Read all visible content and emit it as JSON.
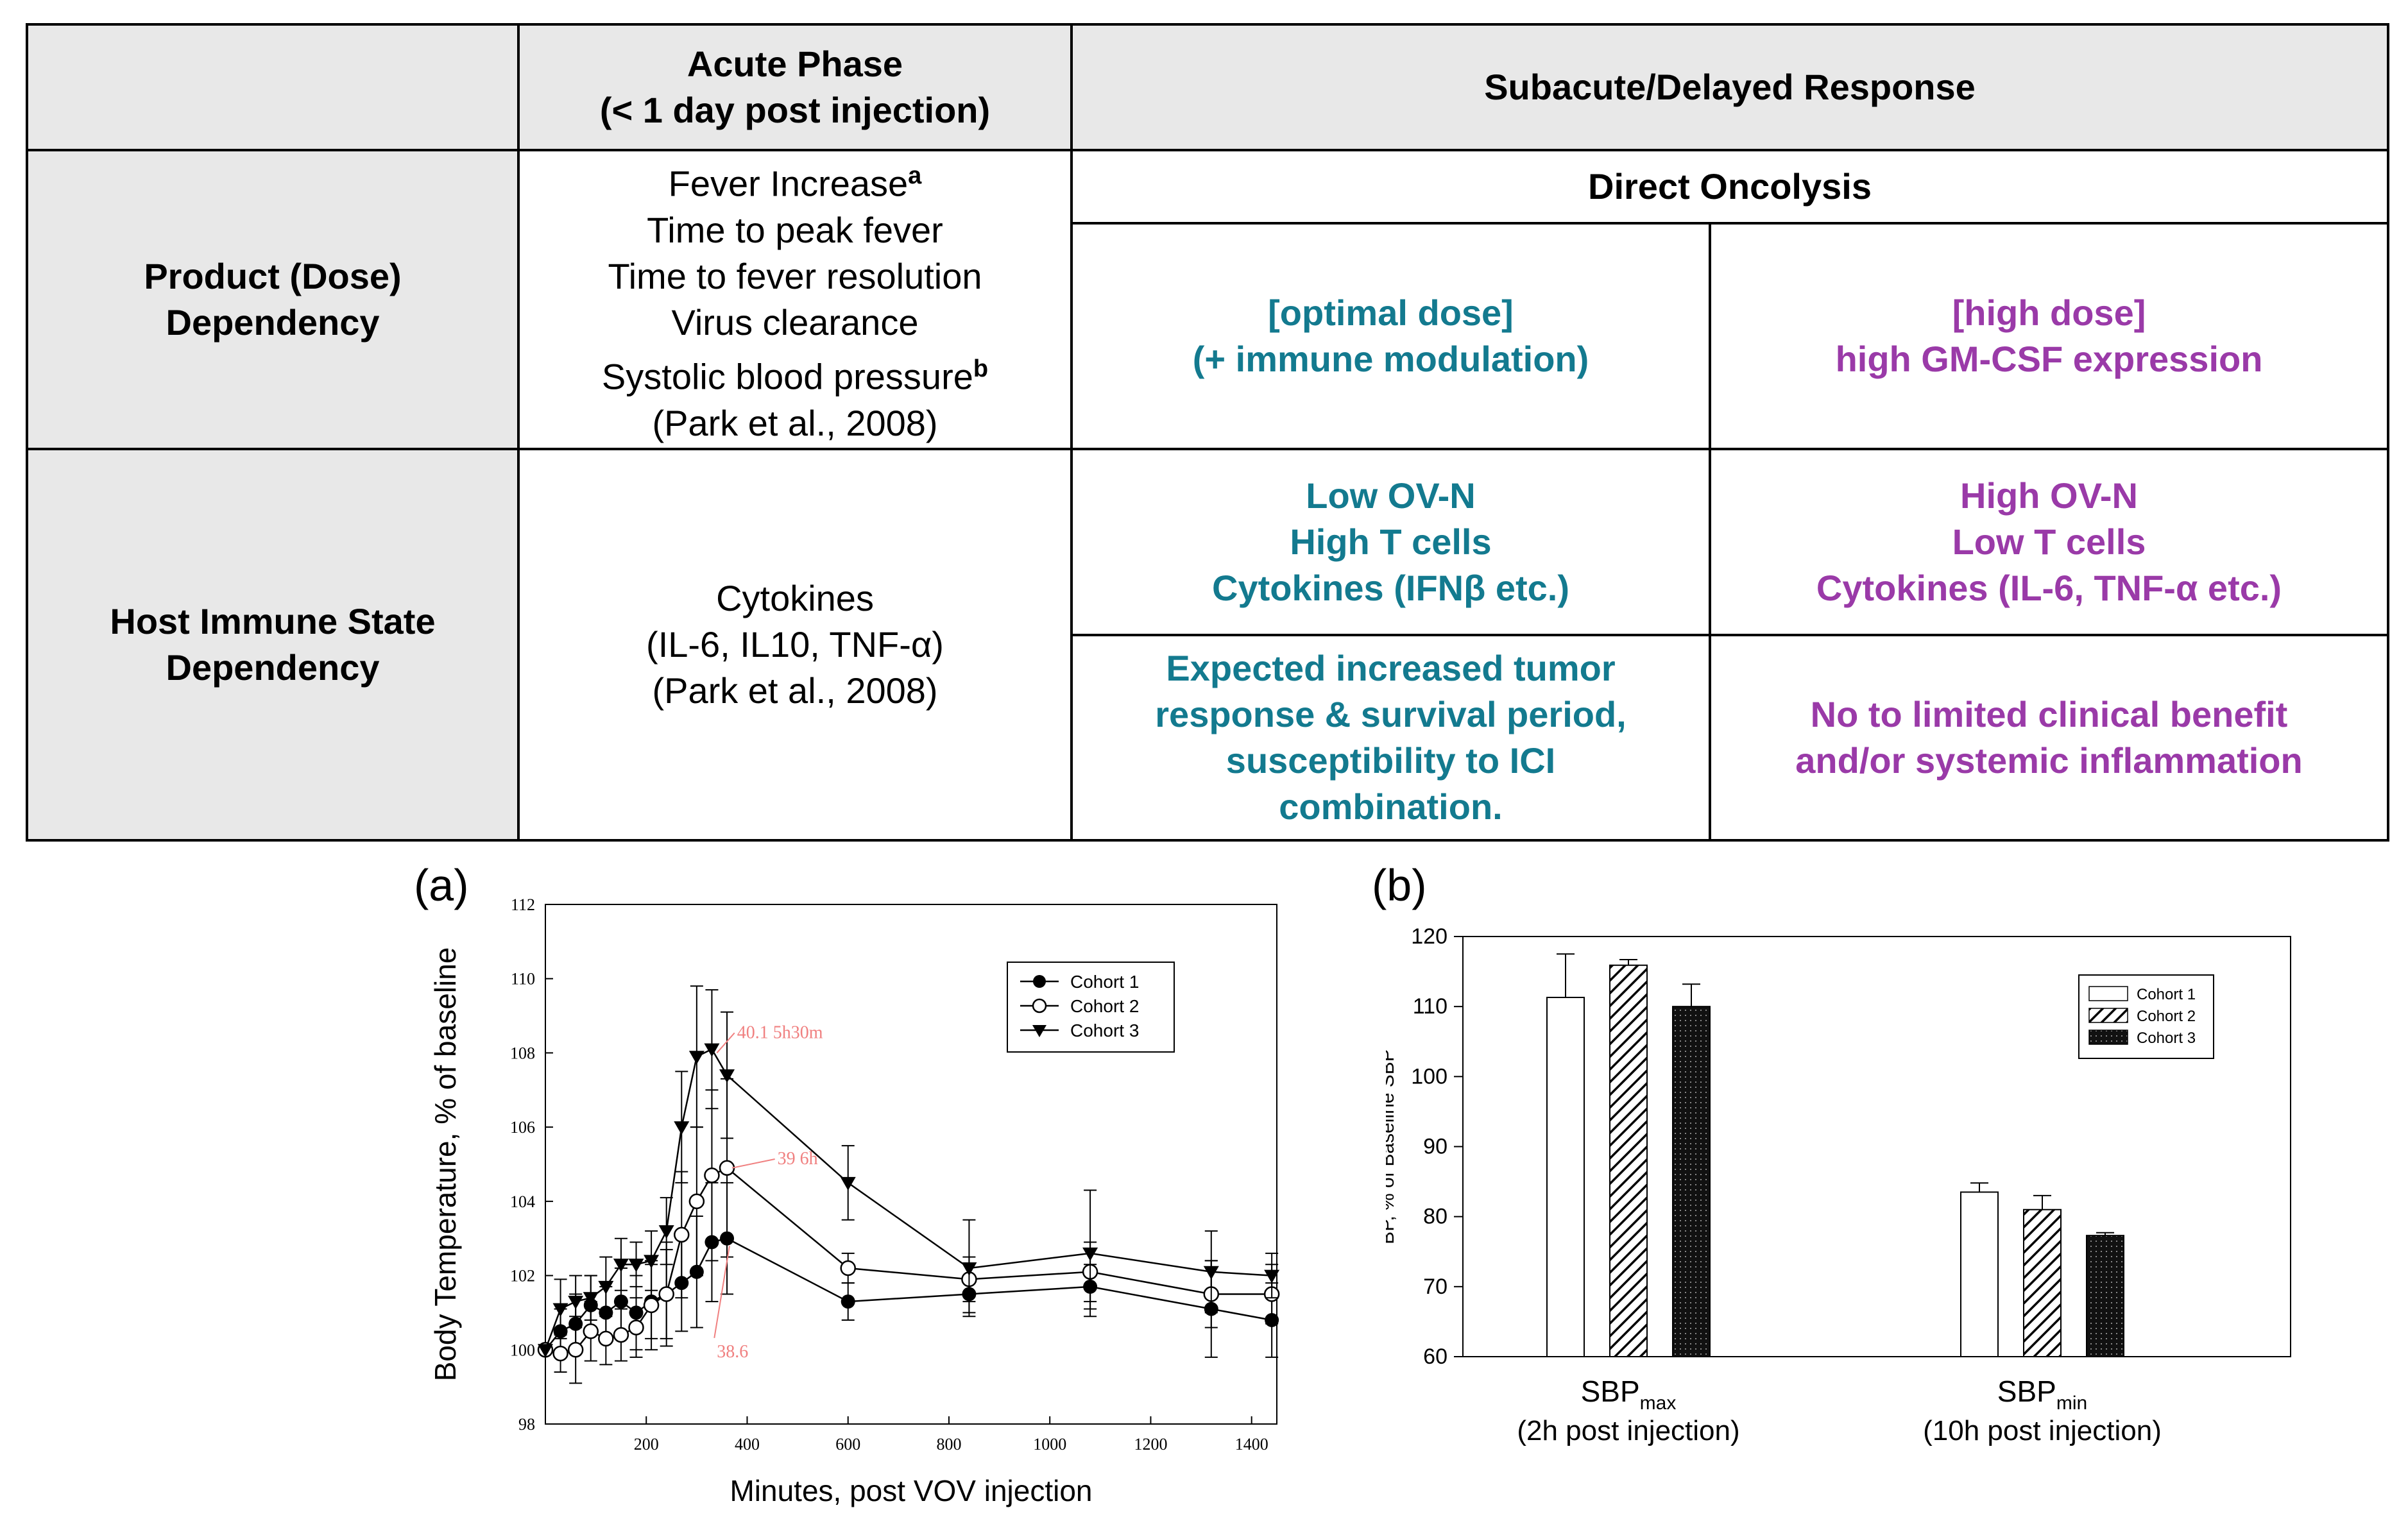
{
  "table": {
    "col_headers": {
      "acute_line1": "Acute Phase",
      "acute_line2": "(< 1 day post injection)",
      "subacute": "Subacute/Delayed Response"
    },
    "rows": {
      "product_line1": "Product (Dose)",
      "product_line2": "Dependency",
      "host_line1": "Host Immune State",
      "host_line2": "Dependency"
    },
    "acute_product": {
      "l1": "Fever Increase",
      "l1_sup": "a",
      "l2": "Time to peak fever",
      "l3": "Time to fever resolution",
      "l4": "Virus clearance",
      "l5": "Systolic blood pressure",
      "l5_sup": "b",
      "l6": "(Park et al., 2008)"
    },
    "acute_host": {
      "l1": "Cytokines",
      "l2": "(IL-6, IL10, TNF-α)",
      "l3": "(Park et al., 2008)"
    },
    "direct_oncolysis": "Direct Oncolysis",
    "optimal_dose": {
      "l1": "[optimal dose]",
      "l2": "(+ immune modulation)"
    },
    "high_dose": {
      "l1": "[high dose]",
      "l2": "high GM-CSF expression"
    },
    "low_ovn": {
      "l1": "Low OV-N",
      "l2": "High T cells",
      "l3": "Cytokines (IFNβ etc.)"
    },
    "high_ovn": {
      "l1": "High OV-N",
      "l2": "Low T cells",
      "l3": "Cytokines (IL-6, TNF-α etc.)"
    },
    "expected": {
      "l1": "Expected increased tumor",
      "l2": "response & survival period,",
      "l3": "susceptibility to ICI",
      "l4": "combination."
    },
    "no_benefit": {
      "l1": "No to limited clinical benefit",
      "l2": "and/or systemic inflammation"
    }
  },
  "colors": {
    "teal": "#137a8f",
    "purple": "#9a3aa8",
    "header_bg": "#e8e8e8",
    "annotation": "#f08080"
  },
  "chart_a_label": "(a)",
  "chart_b_label": "(b)",
  "chart_data": [
    {
      "type": "line",
      "title": "",
      "xlabel": "Minutes, post VOV injection",
      "ylabel": "Body Temperature, % of baseline",
      "xlim": [
        0,
        1450
      ],
      "ylim": [
        98,
        112
      ],
      "x_ticks": [
        200,
        400,
        600,
        800,
        1000,
        1200,
        1400
      ],
      "y_ticks": [
        98,
        100,
        102,
        104,
        106,
        108,
        110,
        112
      ],
      "legend": [
        "Cohort 1",
        "Cohort 2",
        "Cohort 3"
      ],
      "legend_position": "top-right",
      "series": [
        {
          "name": "Cohort 1",
          "marker": "filled-circle",
          "x": [
            0,
            30,
            60,
            90,
            120,
            150,
            180,
            210,
            240,
            270,
            300,
            330,
            360,
            600,
            840,
            1080,
            1320,
            1440
          ],
          "y": [
            100.0,
            100.5,
            100.7,
            101.2,
            101.0,
            101.3,
            101.0,
            101.3,
            101.5,
            101.8,
            102.1,
            102.9,
            103.0,
            101.3,
            101.5,
            101.7,
            101.1,
            100.8
          ],
          "err": [
            0.0,
            0.6,
            0.8,
            0.8,
            0.7,
            0.9,
            1.0,
            1.0,
            1.2,
            1.3,
            1.5,
            1.6,
            1.5,
            0.5,
            0.5,
            0.6,
            1.3,
            1.0
          ]
        },
        {
          "name": "Cohort 2",
          "marker": "open-circle",
          "x": [
            0,
            30,
            60,
            90,
            120,
            150,
            180,
            210,
            240,
            270,
            300,
            330,
            360,
            600,
            840,
            1080,
            1320,
            1440
          ],
          "y": [
            100.0,
            99.9,
            100.0,
            100.5,
            100.3,
            100.4,
            100.6,
            101.2,
            101.5,
            103.1,
            104.0,
            104.7,
            104.9,
            102.2,
            101.9,
            102.1,
            101.5,
            101.5
          ],
          "err": [
            0.0,
            0.5,
            0.9,
            0.8,
            0.7,
            0.7,
            0.8,
            1.2,
            1.4,
            1.7,
            2.0,
            2.3,
            2.4,
            0.4,
            0.6,
            0.8,
            0.9,
            0.8
          ]
        },
        {
          "name": "Cohort 3",
          "marker": "filled-triangle",
          "x": [
            0,
            30,
            60,
            90,
            120,
            150,
            180,
            210,
            240,
            270,
            300,
            330,
            360,
            600,
            840,
            1080,
            1320,
            1440
          ],
          "y": [
            100.0,
            101.1,
            101.3,
            101.4,
            101.7,
            102.3,
            102.3,
            102.4,
            103.2,
            106.0,
            107.9,
            108.1,
            107.4,
            104.5,
            102.2,
            102.6,
            102.1,
            102.0
          ],
          "err": [
            0.0,
            0.8,
            0.7,
            0.6,
            0.8,
            0.7,
            0.6,
            0.8,
            0.9,
            1.5,
            1.9,
            1.6,
            1.7,
            1.0,
            1.3,
            1.7,
            1.1,
            0.6
          ]
        }
      ],
      "annotations": [
        {
          "text": "40.1  5h30m",
          "x": 380,
          "y": 108.4,
          "arrow_to_x": 340,
          "arrow_to_y": 108.0
        },
        {
          "text": "39  6h",
          "x": 460,
          "y": 105.0,
          "arrow_to_x": 370,
          "arrow_to_y": 104.9
        },
        {
          "text": "38.6",
          "x": 340,
          "y": 99.8,
          "arrow_to_x": 365,
          "arrow_to_y": 102.8
        }
      ]
    },
    {
      "type": "bar",
      "xlabel": "",
      "ylabel": "BP, % of Baseline SBP",
      "ylim": [
        60,
        120
      ],
      "y_ticks": [
        60,
        70,
        80,
        90,
        100,
        110,
        120
      ],
      "categories": [
        {
          "main": "SBP",
          "sub": "max",
          "note": "(2h post injection)"
        },
        {
          "main": "SBP",
          "sub": "min",
          "note": "(10h post injection)"
        }
      ],
      "legend": [
        "Cohort 1",
        "Cohort 2",
        "Cohort 3"
      ],
      "legend_position": "top-right",
      "series": [
        {
          "name": "Cohort 1",
          "pattern": "white",
          "values": [
            111.3,
            83.5
          ],
          "err": [
            6.2,
            1.3
          ]
        },
        {
          "name": "Cohort 2",
          "pattern": "hatched",
          "values": [
            115.9,
            81.0
          ],
          "err": [
            0.8,
            2.0
          ]
        },
        {
          "name": "Cohort 3",
          "pattern": "dark-dotted",
          "values": [
            110.0,
            77.3
          ],
          "err": [
            3.2,
            0.4
          ]
        }
      ]
    }
  ]
}
